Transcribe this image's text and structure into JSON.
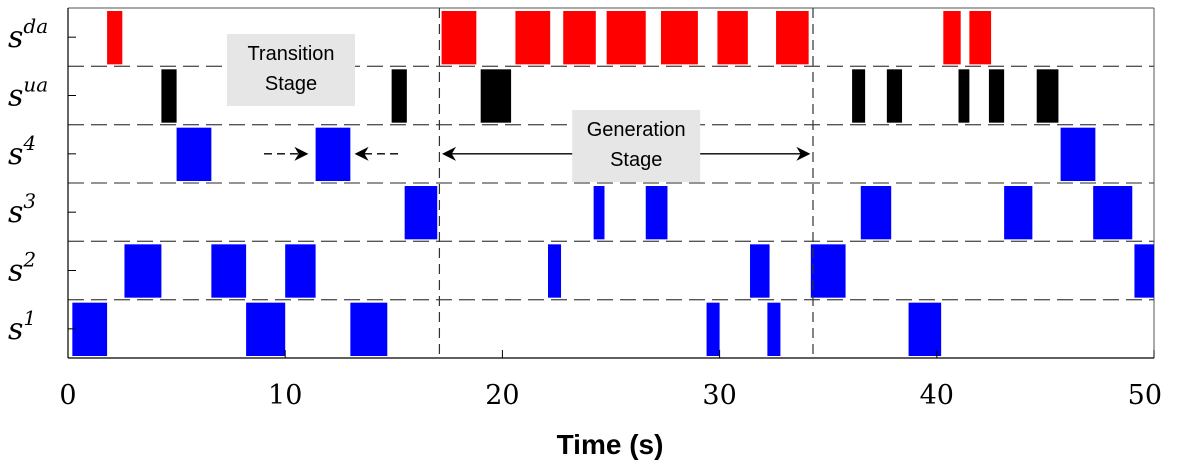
{
  "chart_data": {
    "type": "timeline",
    "xlabel": "Time (s)",
    "xlim": [
      0,
      50
    ],
    "xticks": [
      0,
      10,
      20,
      30,
      40,
      50
    ],
    "grid": "dashed row separators",
    "rows": [
      {
        "id": "sda",
        "base": "s",
        "sup": "da",
        "color": "#ff0000",
        "intervals": [
          [
            1.8,
            2.5
          ],
          [
            17.2,
            18.8
          ],
          [
            20.6,
            22.2
          ],
          [
            22.8,
            24.3
          ],
          [
            24.8,
            26.6
          ],
          [
            27.3,
            29.0
          ],
          [
            29.9,
            31.3
          ],
          [
            32.6,
            34.1
          ],
          [
            40.3,
            41.1
          ],
          [
            41.5,
            42.5
          ]
        ]
      },
      {
        "id": "sua",
        "base": "s",
        "sup": "ua",
        "color": "#000000",
        "intervals": [
          [
            4.3,
            5.0
          ],
          [
            14.9,
            15.6
          ],
          [
            19.0,
            20.4
          ],
          [
            36.1,
            36.7
          ],
          [
            37.7,
            38.4
          ],
          [
            41.0,
            41.5
          ],
          [
            42.4,
            43.1
          ],
          [
            44.6,
            45.6
          ]
        ]
      },
      {
        "id": "s4",
        "base": "s",
        "sup": "4",
        "color": "#0000ff",
        "intervals": [
          [
            5.0,
            6.6
          ],
          [
            11.4,
            13.0
          ],
          [
            45.7,
            47.3
          ]
        ]
      },
      {
        "id": "s3",
        "base": "s",
        "sup": "3",
        "color": "#0000ff",
        "intervals": [
          [
            15.5,
            17.0
          ],
          [
            24.2,
            24.7
          ],
          [
            26.6,
            27.6
          ],
          [
            36.5,
            37.9
          ],
          [
            43.1,
            44.4
          ],
          [
            47.2,
            49.0
          ]
        ]
      },
      {
        "id": "s2",
        "base": "s",
        "sup": "2",
        "color": "#0000ff",
        "intervals": [
          [
            2.6,
            4.3
          ],
          [
            6.6,
            8.2
          ],
          [
            10.0,
            11.4
          ],
          [
            22.1,
            22.7
          ],
          [
            31.4,
            32.3
          ],
          [
            34.2,
            35.8
          ],
          [
            49.1,
            50.0
          ]
        ]
      },
      {
        "id": "s1",
        "base": "s",
        "sup": "1",
        "color": "#0000ff",
        "intervals": [
          [
            0.2,
            1.8
          ],
          [
            8.2,
            10.0
          ],
          [
            13.0,
            14.7
          ],
          [
            29.4,
            30.0
          ],
          [
            32.2,
            32.8
          ],
          [
            38.7,
            40.2
          ]
        ]
      }
    ],
    "stage_boundaries": [
      17.1,
      34.3
    ],
    "annotations": [
      {
        "id": "transition",
        "lines": [
          "Transition",
          "Stage"
        ]
      },
      {
        "id": "generation",
        "lines": [
          "Generation",
          "Stage"
        ]
      }
    ]
  }
}
